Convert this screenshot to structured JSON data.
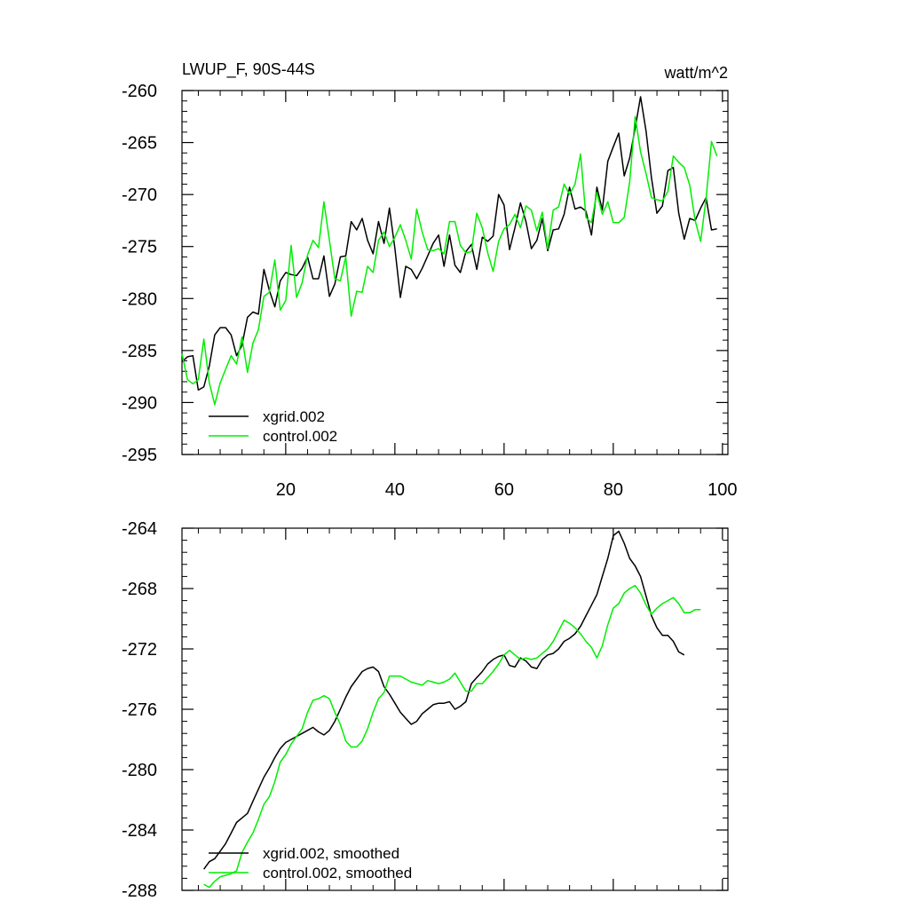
{
  "chart_data": [
    {
      "type": "line",
      "title_left": "LWUP_F, 90S-44S",
      "title_right": "watt/m^2",
      "xlabel": "",
      "ylabel": "",
      "xlim": [
        1,
        101
      ],
      "ylim": [
        -295,
        -260
      ],
      "xticks": [
        20,
        40,
        60,
        80,
        100
      ],
      "xtick_labels": [
        "20",
        "40",
        "60",
        "80",
        "100"
      ],
      "yticks": [
        -260,
        -265,
        -270,
        -275,
        -280,
        -285,
        -290,
        -295
      ],
      "ytick_labels": [
        "-260",
        "-265",
        "-270",
        "-275",
        "-280",
        "-285",
        "-290",
        "-295"
      ],
      "legend_position": "bottom-left",
      "series": [
        {
          "name": "xgrid.002",
          "color": "#000000",
          "x_start": 1,
          "values": [
            -286.1,
            -285.6,
            -285.5,
            -288.8,
            -288.5,
            -286.5,
            -283.5,
            -282.8,
            -282.8,
            -283.5,
            -285.5,
            -284.5,
            -281.8,
            -281.3,
            -281.5,
            -277.2,
            -279.2,
            -280.8,
            -278.3,
            -277.5,
            -277.7,
            -277.8,
            -277.1,
            -276.0,
            -278.1,
            -278.1,
            -275.9,
            -279.8,
            -278.6,
            -276.0,
            -275.9,
            -272.6,
            -273.4,
            -272.3,
            -274.4,
            -275.7,
            -272.6,
            -274.7,
            -271.3,
            -275.2,
            -279.9,
            -276.9,
            -277.2,
            -278.1,
            -277.1,
            -275.9,
            -274.7,
            -273.9,
            -276.9,
            -273.9,
            -276.8,
            -277.5,
            -275.5,
            -274.8,
            -277.2,
            -274.1,
            -274.5,
            -274.0,
            -270.0,
            -271.0,
            -275.3,
            -273.2,
            -270.8,
            -272.6,
            -275.2,
            -274.4,
            -272.3,
            -275.4,
            -273.4,
            -273.3,
            -271.9,
            -269.3,
            -271.4,
            -271.2,
            -271.6,
            -273.9,
            -269.3,
            -271.5,
            -266.8,
            -265.4,
            -264.1,
            -268.2,
            -266.5,
            -263.6,
            -260.6,
            -263.9,
            -268.4,
            -271.8,
            -271.1,
            -267.7,
            -267.4,
            -271.8,
            -274.3,
            -272.3,
            -272.5,
            -271.3,
            -270.3,
            -273.4,
            -273.3
          ],
          "label_in_legend": "xgrid.002"
        },
        {
          "name": "control.002",
          "color": "#00ee00",
          "x_start": 1,
          "values": [
            -285.3,
            -287.8,
            -288.2,
            -287.8,
            -283.9,
            -288.1,
            -290.2,
            -288.1,
            -286.8,
            -285.5,
            -286.3,
            -283.7,
            -287.1,
            -284.3,
            -283.0,
            -279.8,
            -279.4,
            -276.3,
            -281.1,
            -280.2,
            -274.9,
            -279.9,
            -278.5,
            -275.8,
            -274.4,
            -275.1,
            -270.7,
            -274.4,
            -278.1,
            -278.3,
            -276.0,
            -281.7,
            -279.3,
            -279.4,
            -276.9,
            -277.5,
            -274.4,
            -273.6,
            -275.0,
            -274.1,
            -272.9,
            -274.4,
            -276.2,
            -271.4,
            -273.6,
            -275.3,
            -275.4,
            -275.2,
            -275.7,
            -272.6,
            -272.6,
            -274.9,
            -275.6,
            -275.5,
            -271.8,
            -273.2,
            -275.6,
            -277.4,
            -274.5,
            -273.3,
            -272.9,
            -271.9,
            -273.2,
            -271.1,
            -271.5,
            -273.5,
            -271.7,
            -275.2,
            -271.5,
            -271.2,
            -269.0,
            -270.0,
            -269.0,
            -266.1,
            -272.2,
            -272.7,
            -269.8,
            -271.9,
            -270.7,
            -272.7,
            -272.7,
            -272.2,
            -268.8,
            -262.5,
            -265.9,
            -268.0,
            -270.3,
            -270.5,
            -270.6,
            -269.7,
            -266.3,
            -266.9,
            -267.4,
            -269.1,
            -272.5,
            -274.5,
            -270.4,
            -264.9,
            -266.3
          ],
          "label_in_legend": "control.002"
        }
      ]
    },
    {
      "type": "line",
      "xlabel": "",
      "ylabel": "",
      "xlim": [
        1,
        101
      ],
      "ylim": [
        -288,
        -264
      ],
      "yticks": [
        -264,
        -268,
        -272,
        -276,
        -280,
        -284,
        -288
      ],
      "ytick_labels": [
        "-264",
        "-268",
        "-272",
        "-276",
        "-280",
        "-284",
        "-288"
      ],
      "legend_position": "bottom-left",
      "series": [
        {
          "name": "xgrid.002, smoothed",
          "color": "#000000",
          "x_start": 5,
          "values": [
            -286.6,
            -286.1,
            -285.9,
            -285.4,
            -284.9,
            -284.2,
            -283.5,
            -283.2,
            -282.9,
            -282.1,
            -281.3,
            -280.5,
            -279.9,
            -279.2,
            -278.6,
            -278.2,
            -278.0,
            -277.8,
            -277.6,
            -277.4,
            -277.2,
            -277.5,
            -277.7,
            -277.4,
            -276.8,
            -276.0,
            -275.2,
            -274.5,
            -274.0,
            -273.5,
            -273.3,
            -273.2,
            -273.5,
            -274.5,
            -275.0,
            -275.6,
            -276.2,
            -276.6,
            -277.0,
            -276.8,
            -276.3,
            -276.0,
            -275.7,
            -275.6,
            -275.6,
            -275.5,
            -276.0,
            -275.8,
            -275.5,
            -274.3,
            -273.9,
            -273.5,
            -273.0,
            -272.7,
            -272.5,
            -272.4,
            -273.1,
            -273.2,
            -272.6,
            -272.8,
            -273.2,
            -273.3,
            -272.7,
            -272.4,
            -272.3,
            -272.0,
            -271.5,
            -271.3,
            -271.0,
            -270.5,
            -269.8,
            -269.1,
            -268.4,
            -267.2,
            -266.0,
            -264.5,
            -264.2,
            -265.0,
            -266.0,
            -266.5,
            -267.2,
            -268.5,
            -269.8,
            -270.6,
            -271.1,
            -271.1,
            -271.5,
            -272.2,
            -272.4
          ],
          "label_in_legend": "xgrid.002, smoothed"
        },
        {
          "name": "control.002, smoothed",
          "color": "#00ee00",
          "x_start": 5,
          "values": [
            -287.6,
            -287.8,
            -287.4,
            -287.1,
            -287.0,
            -286.9,
            -286.7,
            -285.5,
            -284.8,
            -284.2,
            -283.3,
            -282.3,
            -281.8,
            -280.8,
            -279.5,
            -279.0,
            -278.3,
            -277.8,
            -277.3,
            -276.2,
            -275.4,
            -275.3,
            -275.1,
            -275.3,
            -276.2,
            -277.0,
            -278.1,
            -278.5,
            -278.5,
            -278.1,
            -277.3,
            -276.2,
            -275.3,
            -274.9,
            -273.8,
            -273.8,
            -273.8,
            -274.0,
            -274.2,
            -274.3,
            -274.4,
            -274.1,
            -274.2,
            -274.3,
            -274.2,
            -274.0,
            -273.6,
            -274.2,
            -274.8,
            -274.8,
            -274.3,
            -274.3,
            -273.9,
            -273.5,
            -273.0,
            -272.4,
            -272.1,
            -272.4,
            -272.7,
            -272.6,
            -272.7,
            -272.6,
            -272.3,
            -272.0,
            -271.5,
            -270.8,
            -270.1,
            -270.3,
            -270.6,
            -271.0,
            -271.5,
            -271.9,
            -272.6,
            -271.8,
            -270.4,
            -269.3,
            -269.0,
            -268.3,
            -268.0,
            -267.8,
            -268.3,
            -269.1,
            -269.7,
            -269.3,
            -269.0,
            -268.8,
            -268.6,
            -269.0,
            -269.6,
            -269.6,
            -269.4,
            -269.4
          ],
          "label_in_legend": "control.002, smoothed"
        }
      ]
    }
  ]
}
